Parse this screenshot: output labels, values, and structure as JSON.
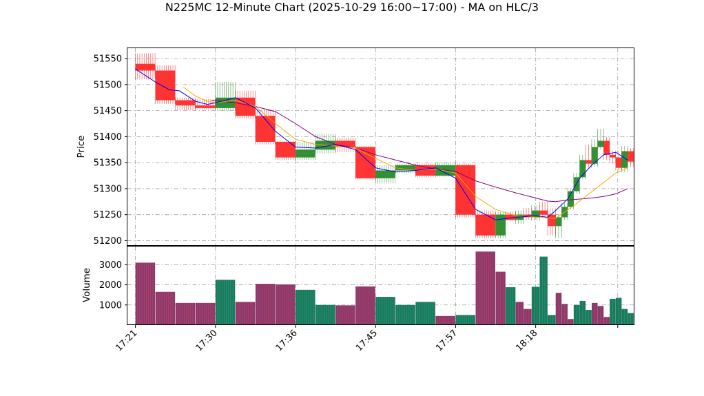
{
  "chart_data": {
    "type": "candlestick",
    "title": "N225MC 12-Minute Chart (2025-10-29 16:00~17:00) - MA on HLC/3",
    "price_panel": {
      "ylabel": "Price",
      "ylim": [
        51190,
        51570
      ],
      "yticks": [
        51200,
        51250,
        51300,
        51350,
        51400,
        51450,
        51500,
        51550
      ],
      "colors": {
        "up": "#2a8a2a",
        "down": "#ff2a2a",
        "ma_short": "#0000ee",
        "ma_mid": "#ffa500",
        "ma_long": "#800080"
      },
      "candles": [
        {
          "t": 0,
          "o": 51540,
          "h": 51560,
          "l": 51510,
          "c": 51527
        },
        {
          "t": 1,
          "o": 51527,
          "h": 51537,
          "l": 51463,
          "c": 51470
        },
        {
          "t": 2,
          "o": 51470,
          "h": 51475,
          "l": 51451,
          "c": 51460
        },
        {
          "t": 3,
          "o": 51460,
          "h": 51472,
          "l": 51452,
          "c": 51455
        },
        {
          "t": 4,
          "o": 51455,
          "h": 51505,
          "l": 51450,
          "c": 51475
        },
        {
          "t": 5,
          "o": 51475,
          "h": 51488,
          "l": 51435,
          "c": 51440
        },
        {
          "t": 6,
          "o": 51440,
          "h": 51452,
          "l": 51385,
          "c": 51390
        },
        {
          "t": 7,
          "o": 51390,
          "h": 51392,
          "l": 51355,
          "c": 51360
        },
        {
          "t": 8,
          "o": 51360,
          "h": 51390,
          "l": 51355,
          "c": 51375
        },
        {
          "t": 9,
          "o": 51375,
          "h": 51405,
          "l": 51368,
          "c": 51392
        },
        {
          "t": 10,
          "o": 51392,
          "h": 51398,
          "l": 51370,
          "c": 51380
        },
        {
          "t": 11,
          "o": 51380,
          "h": 51382,
          "l": 51318,
          "c": 51320
        },
        {
          "t": 12,
          "o": 51320,
          "h": 51345,
          "l": 51310,
          "c": 51335
        },
        {
          "t": 13,
          "o": 51335,
          "h": 51348,
          "l": 51330,
          "c": 51345
        },
        {
          "t": 14,
          "o": 51345,
          "h": 51348,
          "l": 51322,
          "c": 51325
        },
        {
          "t": 15,
          "o": 51325,
          "h": 51350,
          "l": 51323,
          "c": 51345
        },
        {
          "t": 16,
          "o": 51345,
          "h": 51348,
          "l": 51245,
          "c": 51250
        },
        {
          "t": 17,
          "o": 51250,
          "h": 51258,
          "l": 51205,
          "c": 51210
        },
        {
          "t": 18,
          "o": 51210,
          "h": 51255,
          "l": 51205,
          "c": 51250
        },
        {
          "t": 18.5,
          "o": 51250,
          "h": 51256,
          "l": 51238,
          "c": 51240
        },
        {
          "t": 19,
          "o": 51240,
          "h": 51258,
          "l": 51232,
          "c": 51250
        },
        {
          "t": 19.4,
          "o": 51250,
          "h": 51263,
          "l": 51240,
          "c": 51245
        },
        {
          "t": 19.8,
          "o": 51245,
          "h": 51268,
          "l": 51238,
          "c": 51258
        },
        {
          "t": 20.2,
          "o": 51258,
          "h": 51275,
          "l": 51245,
          "c": 51250
        },
        {
          "t": 20.6,
          "o": 51250,
          "h": 51262,
          "l": 51210,
          "c": 51228
        },
        {
          "t": 21,
          "o": 51228,
          "h": 51250,
          "l": 51205,
          "c": 51245
        },
        {
          "t": 21.3,
          "o": 51245,
          "h": 51272,
          "l": 51240,
          "c": 51265
        },
        {
          "t": 21.6,
          "o": 51265,
          "h": 51300,
          "l": 51260,
          "c": 51295
        },
        {
          "t": 21.9,
          "o": 51295,
          "h": 51330,
          "l": 51290,
          "c": 51322
        },
        {
          "t": 22.2,
          "o": 51322,
          "h": 51365,
          "l": 51318,
          "c": 51355
        },
        {
          "t": 22.5,
          "o": 51355,
          "h": 51385,
          "l": 51340,
          "c": 51348
        },
        {
          "t": 22.8,
          "o": 51348,
          "h": 51395,
          "l": 51342,
          "c": 51380
        },
        {
          "t": 23.1,
          "o": 51380,
          "h": 51415,
          "l": 51375,
          "c": 51392
        },
        {
          "t": 23.4,
          "o": 51392,
          "h": 51400,
          "l": 51355,
          "c": 51365
        },
        {
          "t": 23.7,
          "o": 51365,
          "h": 51372,
          "l": 51348,
          "c": 51360
        },
        {
          "t": 24,
          "o": 51360,
          "h": 51372,
          "l": 51335,
          "c": 51340
        },
        {
          "t": 24.3,
          "o": 51340,
          "h": 51382,
          "l": 51332,
          "c": 51372
        },
        {
          "t": 24.6,
          "o": 51372,
          "h": 51378,
          "l": 51342,
          "c": 51352
        }
      ],
      "ma_short": [
        [
          0,
          51530
        ],
        [
          1,
          51505
        ],
        [
          1.7,
          51490
        ],
        [
          2.2,
          51488
        ],
        [
          3,
          51468
        ],
        [
          3.6,
          51462
        ],
        [
          4,
          51465
        ],
        [
          5,
          51475
        ],
        [
          6,
          51455
        ],
        [
          7,
          51410
        ],
        [
          8,
          51380
        ],
        [
          9,
          51378
        ],
        [
          10,
          51385
        ],
        [
          11,
          51375
        ],
        [
          12,
          51340
        ],
        [
          13,
          51332
        ],
        [
          14,
          51335
        ],
        [
          15,
          51340
        ],
        [
          16,
          51320
        ],
        [
          16.5,
          51290
        ],
        [
          17,
          51260
        ],
        [
          18,
          51240
        ],
        [
          19,
          51245
        ],
        [
          20,
          51248
        ],
        [
          20.6,
          51245
        ],
        [
          21,
          51258
        ],
        [
          21.6,
          51280
        ],
        [
          22.2,
          51320
        ],
        [
          22.8,
          51345
        ],
        [
          23.4,
          51365
        ],
        [
          24,
          51370
        ],
        [
          24.6,
          51355
        ]
      ],
      "ma_mid": [
        [
          2.4,
          51495
        ],
        [
          3,
          51478
        ],
        [
          3.6,
          51468
        ],
        [
          4,
          51465
        ],
        [
          5,
          51470
        ],
        [
          6,
          51458
        ],
        [
          7,
          51425
        ],
        [
          8,
          51395
        ],
        [
          9,
          51385
        ],
        [
          10,
          51382
        ],
        [
          11,
          51378
        ],
        [
          12,
          51358
        ],
        [
          13,
          51340
        ],
        [
          14,
          51335
        ],
        [
          15,
          51338
        ],
        [
          16,
          51330
        ],
        [
          17,
          51285
        ],
        [
          18,
          51260
        ],
        [
          19,
          51248
        ],
        [
          20,
          51245
        ],
        [
          21,
          51243
        ],
        [
          22,
          51270
        ],
        [
          23,
          51300
        ],
        [
          24,
          51330
        ],
        [
          24.6,
          51340
        ]
      ],
      "ma_long": [
        [
          3.8,
          51470
        ],
        [
          5,
          51465
        ],
        [
          6,
          51458
        ],
        [
          7,
          51448
        ],
        [
          8,
          51425
        ],
        [
          9,
          51400
        ],
        [
          10,
          51385
        ],
        [
          11,
          51378
        ],
        [
          12,
          51365
        ],
        [
          13,
          51355
        ],
        [
          14,
          51345
        ],
        [
          15,
          51338
        ],
        [
          16,
          51333
        ],
        [
          17,
          51315
        ],
        [
          18,
          51303
        ],
        [
          19,
          51292
        ],
        [
          20,
          51282
        ],
        [
          20.6,
          51276
        ],
        [
          21,
          51275
        ],
        [
          21.6,
          51278
        ],
        [
          22.2,
          51280
        ],
        [
          22.8,
          51282
        ],
        [
          23.4,
          51285
        ],
        [
          24,
          51290
        ],
        [
          24.6,
          51300
        ]
      ]
    },
    "volume_panel": {
      "ylabel": "Volume",
      "ylim": [
        0,
        3900
      ],
      "yticks": [
        1000,
        2000,
        3000
      ],
      "colors": {
        "up": "#1a7a5a",
        "down": "#8a3a6a"
      },
      "bars": [
        {
          "t": 0,
          "v": 3100,
          "dir": "down"
        },
        {
          "t": 1,
          "v": 1650,
          "dir": "down"
        },
        {
          "t": 2,
          "v": 1100,
          "dir": "down"
        },
        {
          "t": 3,
          "v": 1100,
          "dir": "down"
        },
        {
          "t": 4,
          "v": 2250,
          "dir": "up"
        },
        {
          "t": 5,
          "v": 1150,
          "dir": "down"
        },
        {
          "t": 6,
          "v": 2050,
          "dir": "down"
        },
        {
          "t": 7,
          "v": 2020,
          "dir": "down"
        },
        {
          "t": 8,
          "v": 1750,
          "dir": "up"
        },
        {
          "t": 9,
          "v": 1000,
          "dir": "up"
        },
        {
          "t": 10,
          "v": 980,
          "dir": "down"
        },
        {
          "t": 11,
          "v": 1920,
          "dir": "down"
        },
        {
          "t": 12,
          "v": 1400,
          "dir": "up"
        },
        {
          "t": 13,
          "v": 1000,
          "dir": "up"
        },
        {
          "t": 14,
          "v": 1150,
          "dir": "up"
        },
        {
          "t": 15,
          "v": 450,
          "dir": "down"
        },
        {
          "t": 16,
          "v": 500,
          "dir": "up"
        },
        {
          "t": 17,
          "v": 3650,
          "dir": "down"
        },
        {
          "t": 18,
          "v": 2650,
          "dir": "down"
        },
        {
          "t": 18.5,
          "v": 1880,
          "dir": "up"
        },
        {
          "t": 19,
          "v": 1150,
          "dir": "down"
        },
        {
          "t": 19.4,
          "v": 800,
          "dir": "down"
        },
        {
          "t": 19.8,
          "v": 1900,
          "dir": "up"
        },
        {
          "t": 20.2,
          "v": 3400,
          "dir": "up"
        },
        {
          "t": 20.6,
          "v": 500,
          "dir": "up"
        },
        {
          "t": 21,
          "v": 1600,
          "dir": "down"
        },
        {
          "t": 21.3,
          "v": 1050,
          "dir": "down"
        },
        {
          "t": 21.6,
          "v": 300,
          "dir": "down"
        },
        {
          "t": 21.9,
          "v": 1000,
          "dir": "up"
        },
        {
          "t": 22.2,
          "v": 1200,
          "dir": "up"
        },
        {
          "t": 22.5,
          "v": 750,
          "dir": "up"
        },
        {
          "t": 22.8,
          "v": 1100,
          "dir": "down"
        },
        {
          "t": 23.1,
          "v": 950,
          "dir": "down"
        },
        {
          "t": 23.4,
          "v": 400,
          "dir": "down"
        },
        {
          "t": 23.7,
          "v": 1300,
          "dir": "up"
        },
        {
          "t": 24,
          "v": 1350,
          "dir": "up"
        },
        {
          "t": 24.3,
          "v": 800,
          "dir": "up"
        },
        {
          "t": 24.6,
          "v": 600,
          "dir": "up"
        }
      ]
    },
    "x_axis": {
      "xlim": [
        -0.4,
        24.9
      ],
      "ticks": [
        {
          "t": 0,
          "label": "17:21"
        },
        {
          "t": 4,
          "label": "17:30"
        },
        {
          "t": 8,
          "label": "17:36"
        },
        {
          "t": 12,
          "label": "17:45"
        },
        {
          "t": 16,
          "label": "17:57"
        },
        {
          "t": 20,
          "label": "18:18"
        },
        {
          "t": 24.1,
          "label": ""
        }
      ]
    },
    "grid": true
  }
}
